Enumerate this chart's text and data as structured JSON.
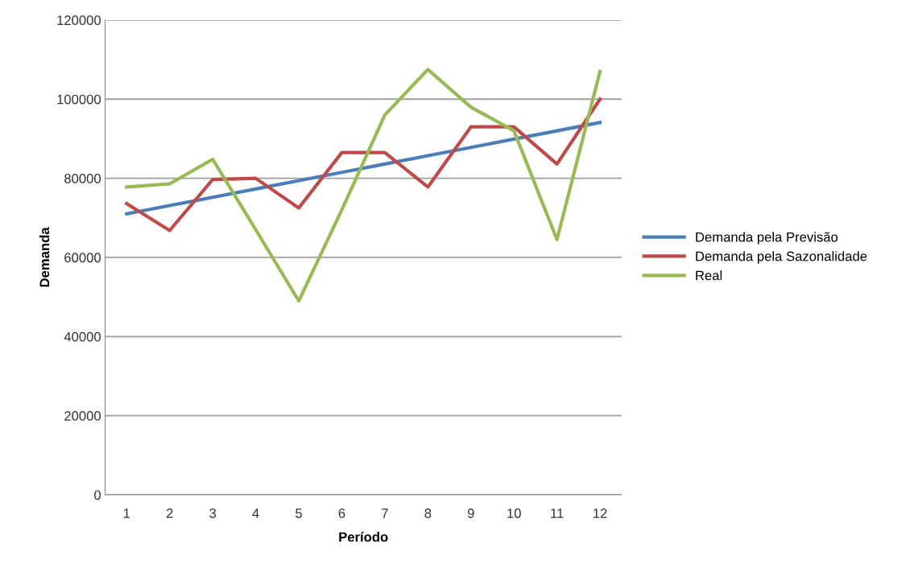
{
  "chart_data": {
    "type": "line",
    "xlabel": "Período",
    "ylabel": "Demanda",
    "categories": [
      "1",
      "2",
      "3",
      "4",
      "5",
      "6",
      "7",
      "8",
      "9",
      "10",
      "11",
      "12"
    ],
    "series": [
      {
        "name": "Demanda pela Previsão",
        "color": "#4a7ebb",
        "values": [
          71000,
          73100,
          75200,
          77300,
          79400,
          81500,
          83600,
          85700,
          87800,
          89900,
          92000,
          94100
        ]
      },
      {
        "name": "Demanda pela Sazonalidade",
        "color": "#be4b48",
        "values": [
          73600,
          66800,
          79700,
          80000,
          72500,
          86500,
          86500,
          77800,
          93000,
          93000,
          83600,
          100000
        ]
      },
      {
        "name": "Real",
        "color": "#98b954",
        "values": [
          77800,
          78600,
          84800,
          67000,
          49000,
          72000,
          96000,
          107500,
          98000,
          92000,
          64500,
          107000
        ]
      }
    ],
    "ylim": [
      0,
      120000
    ],
    "yticks": [
      0,
      20000,
      40000,
      60000,
      80000,
      100000,
      120000
    ],
    "grid": "y",
    "legend": "right",
    "marker": "none",
    "line_style": "solid"
  }
}
